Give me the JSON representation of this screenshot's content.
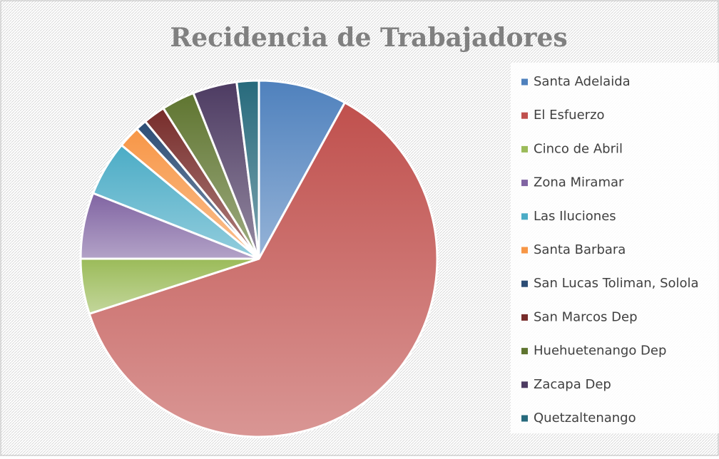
{
  "chart_data": {
    "type": "pie",
    "title": "Recidencia de Trabajadores",
    "categories": [
      "Santa Adelaida",
      "El Esfuerzo",
      "Cinco de Abril",
      "Zona Miramar",
      "Las Iluciones",
      "Santa Barbara",
      "San Lucas Toliman, Solola",
      "San Marcos Dep",
      "Huehuetenango Dep",
      "Zacapa Dep",
      "Quetzaltenango"
    ],
    "values": [
      8,
      62,
      5,
      6,
      5,
      2,
      1,
      2,
      3,
      4,
      2
    ],
    "colors": [
      "#4f81bd",
      "#c0504d",
      "#9bbb59",
      "#8064a2",
      "#4bacc6",
      "#f79646",
      "#2c4d75",
      "#772c2a",
      "#5f7530",
      "#4d3b62",
      "#276a7c"
    ],
    "legend": "right"
  }
}
